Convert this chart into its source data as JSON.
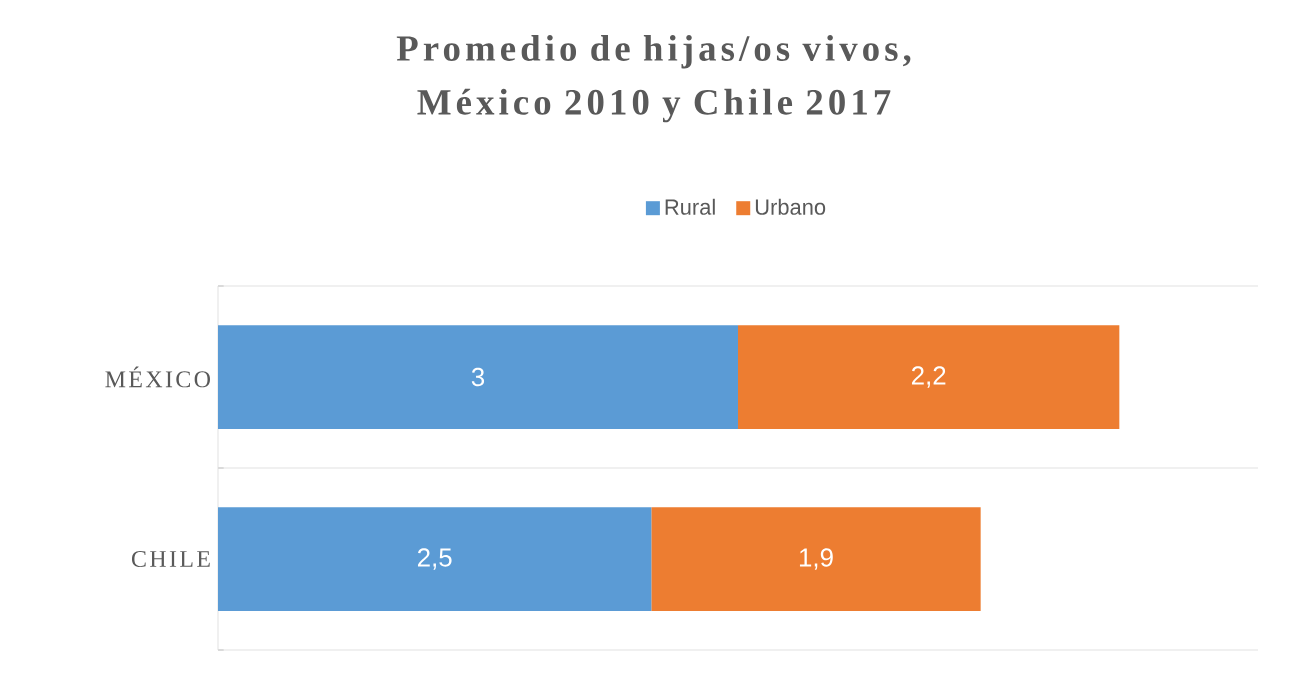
{
  "chart_data": {
    "type": "bar",
    "orientation": "horizontal",
    "stacked": true,
    "title": "Promedio de hijas/os vivos, México 2010 y Chile 2017",
    "categories": [
      "MÉXICO",
      "CHILE"
    ],
    "series": [
      {
        "name": "Rural",
        "color": "#5b9bd5",
        "values": [
          3,
          2.5
        ],
        "value_labels": [
          "3",
          "2,5"
        ]
      },
      {
        "name": "Urbano",
        "color": "#ed7d31",
        "values": [
          2.2,
          1.9
        ],
        "value_labels": [
          "2,2",
          "1,9"
        ]
      }
    ],
    "xlim": [
      0,
      6
    ],
    "tick_labels": "y",
    "grid": "y",
    "legend": "top"
  }
}
